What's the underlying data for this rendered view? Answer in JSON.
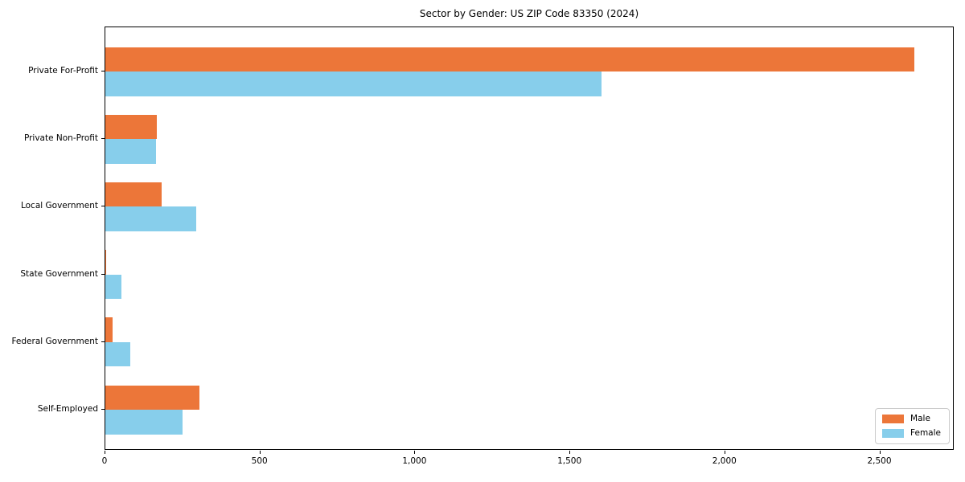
{
  "chart": {
    "title": "Sector by Gender: US ZIP Code 83350 (2024)"
  },
  "chart_data": {
    "type": "bar",
    "orientation": "horizontal",
    "title": "Sector by Gender: US ZIP Code 83350 (2024)",
    "xlabel": "",
    "ylabel": "",
    "categories": [
      "Private For-Profit",
      "Private Non-Profit",
      "Local Government",
      "State Government",
      "Federal Government",
      "Self-Employed"
    ],
    "series": [
      {
        "name": "Male",
        "color": "#ec7639",
        "values": [
          2610,
          165,
          182,
          3,
          23,
          303
        ]
      },
      {
        "name": "Female",
        "color": "#87ceeb",
        "values": [
          1600,
          163,
          293,
          53,
          80,
          250
        ]
      }
    ],
    "xlim": [
      0,
      2740
    ],
    "xticks": [
      0,
      500,
      1000,
      1500,
      2000,
      2500
    ],
    "xtick_labels": [
      "0",
      "500",
      "1,000",
      "1,500",
      "2,000",
      "2,500"
    ],
    "legend_position": "lower right",
    "grid": false,
    "colors": {
      "male": "#ec7639",
      "female": "#87ceeb",
      "axis": "#000000",
      "background": "#ffffff",
      "legend_border": "#cccccc"
    }
  }
}
